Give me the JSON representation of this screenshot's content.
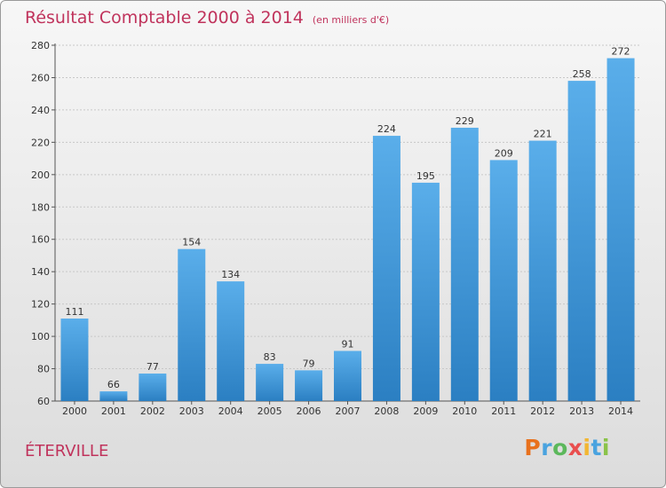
{
  "chart_data": {
    "type": "bar",
    "title": "Résultat Comptable 2000 à 2014",
    "subtitle": "(en milliers d'€)",
    "categories": [
      "2000",
      "2001",
      "2002",
      "2003",
      "2004",
      "2005",
      "2006",
      "2007",
      "2008",
      "2009",
      "2010",
      "2011",
      "2012",
      "2013",
      "2014"
    ],
    "values": [
      111,
      66,
      77,
      154,
      134,
      83,
      79,
      91,
      224,
      195,
      229,
      209,
      221,
      258,
      272
    ],
    "ylim": [
      60,
      280
    ],
    "yticks": [
      60,
      80,
      100,
      120,
      140,
      160,
      180,
      200,
      220,
      240,
      260,
      280
    ],
    "grid": true,
    "bar_color": "#4a9fe0"
  },
  "place_name": "ÉTERVILLE",
  "logo": {
    "letters": [
      "P",
      "r",
      "o",
      "x",
      "i",
      "t",
      "i"
    ],
    "colors": [
      "#e8711d",
      "#4aa3df",
      "#5cb85c",
      "#e94e4e",
      "#f2b632",
      "#4aa3df",
      "#8bc34a"
    ]
  }
}
